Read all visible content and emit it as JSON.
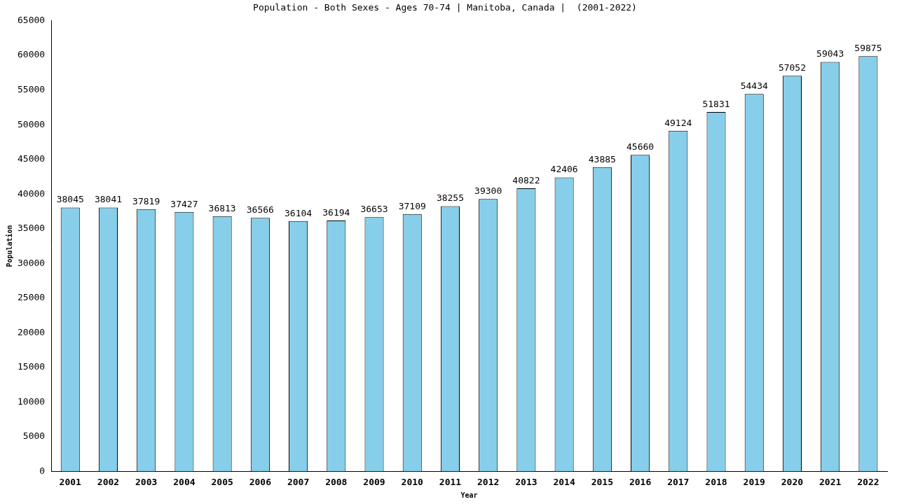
{
  "chart_data": {
    "type": "bar",
    "title": "Population - Both Sexes - Ages 70-74 | Manitoba, Canada |  (2001-2022)",
    "x_label": "Year",
    "y_label": "Population",
    "categories": [
      "2001",
      "2002",
      "2003",
      "2004",
      "2005",
      "2006",
      "2007",
      "2008",
      "2009",
      "2010",
      "2011",
      "2012",
      "2013",
      "2014",
      "2015",
      "2016",
      "2017",
      "2018",
      "2019",
      "2020",
      "2021",
      "2022"
    ],
    "values": [
      38045,
      38041,
      37819,
      37427,
      36813,
      36566,
      36104,
      36194,
      36653,
      37109,
      38255,
      39300,
      40822,
      42406,
      43885,
      45660,
      49124,
      51831,
      54434,
      57052,
      59043,
      59875
    ],
    "color": "#87ceeb",
    "ylim": [
      0,
      65000
    ],
    "yticks": [
      0,
      5000,
      10000,
      15000,
      20000,
      25000,
      30000,
      35000,
      40000,
      45000,
      50000,
      55000,
      60000,
      65000
    ],
    "grid": false,
    "data_labels": true
  }
}
